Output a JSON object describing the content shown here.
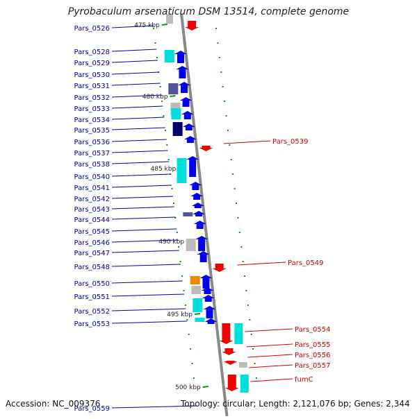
{
  "title": "Pyrobaculum arsenaticum DSM 13514, complete genome",
  "footer": {
    "accession": "Accession: NC_009376",
    "topology": "Topology: circular; Length: 2,121,076 bp; Genes: 2,344"
  },
  "colors": {
    "forward_gene": "#0000ee",
    "reverse_gene": "#ee0000",
    "cds_light": "#00dddd",
    "gray_feature": "#bbbbbb",
    "orange_feature": "#ee8800",
    "dark_feature": "#000066",
    "purple_feature": "#555599",
    "backbone": "#888888",
    "tick": "#009900",
    "forward_label": "#0000aa",
    "reverse_label": "#cc0000"
  },
  "scale_labels": [
    "475 kbp",
    "480 kbp",
    "485 kbp",
    "490 kbp",
    "495 kbp",
    "500 kbp"
  ],
  "forward_genes": [
    "Pars_0526",
    "Pars_0528",
    "Pars_0529",
    "Pars_0530",
    "Pars_0531",
    "Pars_0532",
    "Pars_0533",
    "Pars_0534",
    "Pars_0535",
    "Pars_0536",
    "Pars_0537",
    "Pars_0538",
    "Pars_0540",
    "Pars_0541",
    "Pars_0542",
    "Pars_0543",
    "Pars_0544",
    "Pars_0545",
    "Pars_0546",
    "Pars_0547",
    "Pars_0548",
    "Pars_0550",
    "Pars_0551",
    "Pars_0552",
    "Pars_0553",
    "Pars_0559"
  ],
  "reverse_genes": [
    "Pars_0539",
    "Pars_0549",
    "Pars_0554",
    "Pars_0555",
    "Pars_0556",
    "Pars_0557",
    "fumC"
  ]
}
